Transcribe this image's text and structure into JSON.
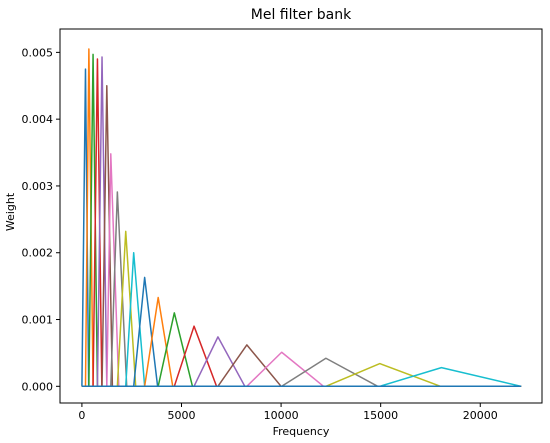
{
  "chart_data": {
    "type": "line",
    "title": "Mel filter bank",
    "xlabel": "Frequency",
    "ylabel": "Weight",
    "xlim": [
      -1100,
      23100
    ],
    "ylim": [
      -0.00025,
      0.00535
    ],
    "x_ticks": [
      0,
      5000,
      10000,
      15000,
      20000
    ],
    "x_tick_labels": [
      "0",
      "5000",
      "10000",
      "15000",
      "20000"
    ],
    "y_ticks": [
      0.0,
      0.001,
      0.002,
      0.003,
      0.004,
      0.005
    ],
    "y_tick_labels": [
      "0.000",
      "0.001",
      "0.002",
      "0.003",
      "0.004",
      "0.005"
    ],
    "grid": false,
    "legend": "none",
    "x_range": [
      0,
      22050
    ],
    "series": [
      {
        "color": "#1f77b4",
        "points": [
          [
            0,
            0
          ],
          [
            0,
            0
          ],
          [
            180,
            0.00475
          ],
          [
            340,
            0
          ],
          [
            22050,
            0
          ]
        ]
      },
      {
        "color": "#ff7f0e",
        "points": [
          [
            0,
            0
          ],
          [
            180,
            0
          ],
          [
            350,
            0.00505
          ],
          [
            560,
            0
          ],
          [
            22050,
            0
          ]
        ]
      },
      {
        "color": "#2ca02c",
        "points": [
          [
            0,
            0
          ],
          [
            350,
            0
          ],
          [
            560,
            0.00497
          ],
          [
            780,
            0
          ],
          [
            22050,
            0
          ]
        ]
      },
      {
        "color": "#d62728",
        "points": [
          [
            0,
            0
          ],
          [
            560,
            0
          ],
          [
            780,
            0.0049
          ],
          [
            1000,
            0
          ],
          [
            22050,
            0
          ]
        ]
      },
      {
        "color": "#9467bd",
        "points": [
          [
            0,
            0
          ],
          [
            780,
            0
          ],
          [
            1010,
            0.00493
          ],
          [
            1250,
            0
          ],
          [
            22050,
            0
          ]
        ]
      },
      {
        "color": "#8c564b",
        "points": [
          [
            0,
            0
          ],
          [
            1010,
            0
          ],
          [
            1250,
            0.0045
          ],
          [
            1530,
            0
          ],
          [
            22050,
            0
          ]
        ]
      },
      {
        "color": "#e377c2",
        "points": [
          [
            0,
            0
          ],
          [
            1250,
            0
          ],
          [
            1450,
            0.00348
          ],
          [
            1850,
            0
          ],
          [
            22050,
            0
          ]
        ]
      },
      {
        "color": "#7f7f7f",
        "points": [
          [
            0,
            0
          ],
          [
            1450,
            0
          ],
          [
            1780,
            0.00291
          ],
          [
            2250,
            0
          ],
          [
            22050,
            0
          ]
        ]
      },
      {
        "color": "#bcbd22",
        "points": [
          [
            0,
            0
          ],
          [
            1780,
            0
          ],
          [
            2200,
            0.00232
          ],
          [
            2700,
            0
          ],
          [
            22050,
            0
          ]
        ]
      },
      {
        "color": "#17becf",
        "points": [
          [
            0,
            0
          ],
          [
            2200,
            0
          ],
          [
            2600,
            0.002
          ],
          [
            3150,
            0
          ],
          [
            22050,
            0
          ]
        ]
      },
      {
        "color": "#1f77b4",
        "points": [
          [
            0,
            0
          ],
          [
            2600,
            0
          ],
          [
            3150,
            0.00163
          ],
          [
            3800,
            0
          ],
          [
            22050,
            0
          ]
        ]
      },
      {
        "color": "#ff7f0e",
        "points": [
          [
            0,
            0
          ],
          [
            3150,
            0
          ],
          [
            3830,
            0.00133
          ],
          [
            4560,
            0
          ],
          [
            22050,
            0
          ]
        ]
      },
      {
        "color": "#2ca02c",
        "points": [
          [
            0,
            0
          ],
          [
            3830,
            0
          ],
          [
            4640,
            0.0011
          ],
          [
            5550,
            0
          ],
          [
            22050,
            0
          ]
        ]
      },
      {
        "color": "#d62728",
        "points": [
          [
            0,
            0
          ],
          [
            4640,
            0
          ],
          [
            5630,
            0.0009
          ],
          [
            6760,
            0
          ],
          [
            22050,
            0
          ]
        ]
      },
      {
        "color": "#9467bd",
        "points": [
          [
            0,
            0
          ],
          [
            5630,
            0
          ],
          [
            6830,
            0.00074
          ],
          [
            8180,
            0
          ],
          [
            22050,
            0
          ]
        ]
      },
      {
        "color": "#8c564b",
        "points": [
          [
            0,
            0
          ],
          [
            6830,
            0
          ],
          [
            8280,
            0.00062
          ],
          [
            10000,
            0
          ],
          [
            22050,
            0
          ]
        ]
      },
      {
        "color": "#e377c2",
        "points": [
          [
            0,
            0
          ],
          [
            8280,
            0
          ],
          [
            10030,
            0.00051
          ],
          [
            12130,
            0
          ],
          [
            22050,
            0
          ]
        ]
      },
      {
        "color": "#7f7f7f",
        "points": [
          [
            0,
            0
          ],
          [
            10030,
            0
          ],
          [
            12250,
            0.00042
          ],
          [
            14850,
            0
          ],
          [
            22050,
            0
          ]
        ]
      },
      {
        "color": "#bcbd22",
        "points": [
          [
            0,
            0
          ],
          [
            12250,
            0
          ],
          [
            14960,
            0.00034
          ],
          [
            18000,
            0
          ],
          [
            22050,
            0
          ]
        ]
      },
      {
        "color": "#17becf",
        "points": [
          [
            0,
            0
          ],
          [
            14960,
            0
          ],
          [
            18050,
            0.00028
          ],
          [
            22050,
            0
          ]
        ]
      },
      {
        "color": "#1f77b4",
        "points": [
          [
            0,
            0
          ],
          [
            18050,
            0
          ],
          [
            22050,
            0
          ]
        ]
      }
    ]
  }
}
